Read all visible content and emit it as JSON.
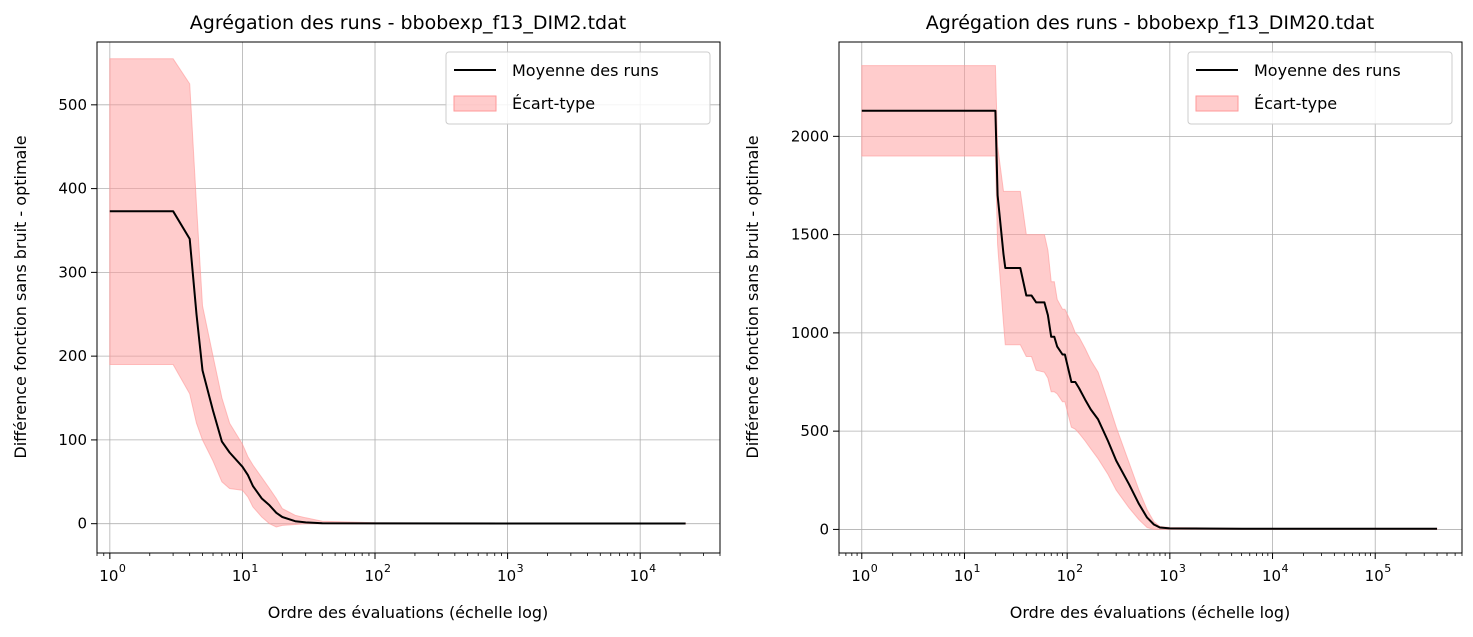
{
  "chart_data": [
    {
      "type": "line",
      "title": "Agrégation des runs - bbobexp_f13_DIM2.tdat",
      "xlabel": "Ordre des évaluations (échelle log)",
      "ylabel": "Différence fonction sans bruit - optimale",
      "xscale": "log",
      "xlim": [
        0.8,
        40000
      ],
      "ylim": [
        -35,
        575
      ],
      "x_ticks": [
        1,
        10,
        100,
        1000,
        10000
      ],
      "x_tick_labels": [
        {
          "base": "10",
          "exp": "0"
        },
        {
          "base": "10",
          "exp": "1"
        },
        {
          "base": "10",
          "exp": "2"
        },
        {
          "base": "10",
          "exp": "3"
        },
        {
          "base": "10",
          "exp": "4"
        }
      ],
      "y_ticks": [
        0,
        100,
        200,
        300,
        400,
        500
      ],
      "y_tick_labels": [
        "0",
        "100",
        "200",
        "300",
        "400",
        "500"
      ],
      "grid": true,
      "legend": {
        "placement": "top-right",
        "entries": [
          "Moyenne des runs",
          "Écart-type"
        ]
      },
      "colors": {
        "mean": "#000000",
        "band": "#ff9999"
      },
      "series": [
        {
          "name": "Moyenne des runs",
          "x": [
            1,
            3,
            4,
            4.5,
            5,
            6,
            7,
            8,
            10,
            11,
            12,
            14,
            16,
            18,
            20,
            25,
            30,
            40,
            100,
            1000,
            22000
          ],
          "y": [
            373,
            373,
            340,
            250,
            183,
            135,
            98,
            85,
            68,
            58,
            45,
            30,
            22,
            13,
            8,
            3,
            1.5,
            0.5,
            0.3,
            0.2,
            0.2
          ]
        },
        {
          "name": "Écart-type",
          "type": "band",
          "x": [
            1,
            3,
            4,
            4.5,
            5,
            6,
            7,
            8,
            10,
            11,
            12,
            14,
            16,
            18,
            20,
            25,
            30,
            40,
            100,
            1000,
            22000
          ],
          "upper": [
            555,
            555,
            525,
            380,
            260,
            200,
            150,
            120,
            95,
            80,
            70,
            55,
            42,
            30,
            18,
            10,
            7,
            3,
            1,
            0.5,
            0.5
          ],
          "lower": [
            190,
            190,
            155,
            120,
            100,
            75,
            50,
            42,
            40,
            32,
            20,
            8,
            0,
            -4,
            -2,
            -1,
            0,
            0,
            0,
            0,
            0
          ]
        }
      ]
    },
    {
      "type": "line",
      "title": "Agrégation des runs - bbobexp_f13_DIM20.tdat",
      "xlabel": "Ordre des évaluations (échelle log)",
      "ylabel": "Différence fonction sans bruit - optimale",
      "xscale": "log",
      "xlim": [
        0.6,
        700000
      ],
      "ylim": [
        -120,
        2480
      ],
      "x_ticks": [
        1,
        10,
        100,
        1000,
        10000,
        100000
      ],
      "x_tick_labels": [
        {
          "base": "10",
          "exp": "0"
        },
        {
          "base": "10",
          "exp": "1"
        },
        {
          "base": "10",
          "exp": "2"
        },
        {
          "base": "10",
          "exp": "3"
        },
        {
          "base": "10",
          "exp": "4"
        },
        {
          "base": "10",
          "exp": "5"
        }
      ],
      "y_ticks": [
        0,
        500,
        1000,
        1500,
        2000
      ],
      "y_tick_labels": [
        "0",
        "500",
        "1000",
        "1500",
        "2000"
      ],
      "grid": true,
      "legend": {
        "placement": "top-right",
        "entries": [
          "Moyenne des runs",
          "Écart-type"
        ]
      },
      "colors": {
        "mean": "#000000",
        "band": "#ff9999"
      },
      "series": [
        {
          "name": "Moyenne des runs",
          "x": [
            1,
            20,
            21,
            24,
            25,
            35,
            40,
            45,
            50,
            60,
            65,
            70,
            75,
            80,
            90,
            95,
            110,
            120,
            130,
            150,
            170,
            200,
            250,
            300,
            400,
            500,
            600,
            700,
            800,
            1000,
            5000,
            400000
          ],
          "y": [
            2130,
            2130,
            1700,
            1400,
            1330,
            1330,
            1190,
            1190,
            1155,
            1155,
            1090,
            980,
            980,
            930,
            890,
            890,
            750,
            750,
            720,
            660,
            610,
            560,
            450,
            350,
            230,
            130,
            60,
            25,
            10,
            5,
            3,
            3
          ]
        },
        {
          "name": "Écart-type",
          "type": "band",
          "x": [
            1,
            20,
            21,
            24,
            25,
            35,
            40,
            45,
            50,
            60,
            65,
            70,
            75,
            80,
            90,
            95,
            110,
            120,
            130,
            150,
            170,
            200,
            250,
            300,
            400,
            500,
            600,
            700,
            800,
            1000,
            5000,
            400000
          ],
          "upper": [
            2360,
            2360,
            1950,
            1720,
            1720,
            1720,
            1500,
            1500,
            1500,
            1500,
            1420,
            1260,
            1260,
            1170,
            1120,
            1120,
            1050,
            1000,
            980,
            920,
            860,
            800,
            650,
            520,
            340,
            200,
            100,
            40,
            15,
            10,
            5,
            5
          ],
          "lower": [
            1900,
            1900,
            1450,
            1050,
            940,
            940,
            880,
            880,
            810,
            800,
            770,
            700,
            700,
            690,
            650,
            650,
            520,
            510,
            490,
            450,
            410,
            360,
            280,
            200,
            110,
            50,
            10,
            0,
            0,
            0,
            0,
            0
          ]
        }
      ]
    }
  ]
}
